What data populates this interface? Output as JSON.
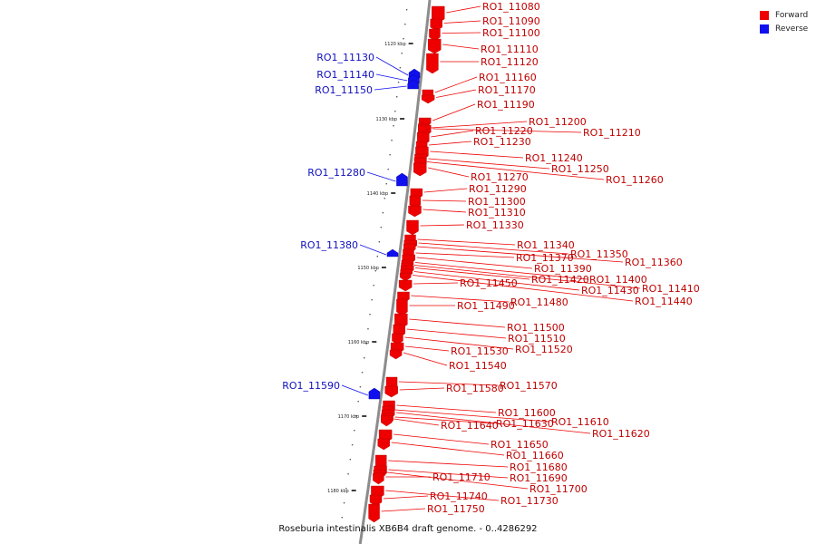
{
  "caption": "Roseburia intestinalis XB6B4 draft genome. - 0..4286292",
  "colors": {
    "forward": "#ee0000",
    "reverse": "#1010ee",
    "backbone": "#8c8c8c"
  },
  "legend": [
    {
      "label": "Forward",
      "color": "#ee0000"
    },
    {
      "label": "Reverse",
      "color": "#1010ee"
    }
  ],
  "ticks": [
    "1120 kbp",
    "1130 kbp",
    "1140 kbp",
    "1150 kbp",
    "1160 kbp",
    "1170 kbp",
    "1180 kbp"
  ],
  "genes": {
    "forward": [
      "RO1_11080",
      "RO1_11090",
      "RO1_11100",
      "RO1_11110",
      "RO1_11120",
      "RO1_11160",
      "RO1_11170",
      "RO1_11190",
      "RO1_11200",
      "RO1_11210",
      "RO1_11220",
      "RO1_11230",
      "RO1_11240",
      "RO1_11250",
      "RO1_11260",
      "RO1_11270",
      "RO1_11290",
      "RO1_11300",
      "RO1_11310",
      "RO1_11330",
      "RO1_11340",
      "RO1_11350",
      "RO1_11360",
      "RO1_11370",
      "RO1_11390",
      "RO1_11400",
      "RO1_11410",
      "RO1_11420",
      "RO1_11430",
      "RO1_11440",
      "RO1_11450",
      "RO1_11480",
      "RO1_11490",
      "RO1_11500",
      "RO1_11510",
      "RO1_11520",
      "RO1_11530",
      "RO1_11540",
      "RO1_11570",
      "RO1_11580",
      "RO1_11600",
      "RO1_11610",
      "RO1_11620",
      "RO1_11630",
      "RO1_11640",
      "RO1_11650",
      "RO1_11660",
      "RO1_11680",
      "RO1_11690",
      "RO1_11700",
      "RO1_11710",
      "RO1_11730",
      "RO1_11740",
      "RO1_11750"
    ],
    "reverse": [
      "RO1_11130",
      "RO1_11140",
      "RO1_11150",
      "RO1_11280",
      "RO1_11380",
      "RO1_11590"
    ]
  }
}
